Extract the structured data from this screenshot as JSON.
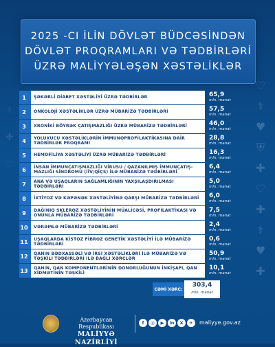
{
  "title": {
    "lines": [
      "2025 -CI İLİN DÖVLƏT BÜDCƏSİNDƏN",
      "DÖVLƏT PROQRAMLARI VƏ TƏDBİRLƏRİ",
      "ÜZRƏ  MALİYYƏLƏŞƏN XƏSTƏLİKLƏR"
    ]
  },
  "chart_data": {
    "type": "table",
    "title": "2025 -CI İLİN DÖVLƏT BÜDCƏSİNDƏN DÖVLƏT PROQRAMLARI VƏ TƏDBİRLƏRİ ÜZRƏ  MALİYYƏLƏŞƏN XƏSTƏLİKLƏR",
    "unit": "mln. manat",
    "rows": [
      {
        "num": "1",
        "label": "ŞƏKƏRLİ DİABET XƏSTƏLİYİ ÜZRƏ TƏDBİRLƏR",
        "value": "65,9"
      },
      {
        "num": "2",
        "label": "ONKOLOJİ XƏSTƏLİKLƏR  ÜZRƏ MÜBARİZƏ TƏDBİRLƏRİ",
        "value": "57,5"
      },
      {
        "num": "3",
        "label": "XRONİKİ BÖYRƏK ÇATIŞMAZLIĞI ÜZRƏ  MÜBARİZƏ TƏDBİRLƏRİ",
        "value": "46,0"
      },
      {
        "num": "4",
        "label": "YOLUXUCU XƏSTƏLİKLƏRİN İMMUNOPROFİLAKTİKASINA DAİR TƏDBİRLƏR PROQRAMI",
        "value": "28,8"
      },
      {
        "num": "5",
        "label": "HEMOFİLİYA XƏSTƏLİYİ ÜZRƏ MÜBARİZƏ TƏDBİRLƏRİ",
        "value": "16,3"
      },
      {
        "num": "6",
        "label": "İNSAN İMMUNÇATIŞMAZLIĞI VİRUSU / QAZANILMIŞ İMMUNÇATIŞ- MAZLIĞI SİNDROMU (İİV/QİÇS) İLƏ MÜBARİZƏ TƏDBİRLƏRİ",
        "value": "6,4"
      },
      {
        "num": "7",
        "label": "ANA VƏ UŞAQLARIN SAĞLAMLIĞININ YAXŞILAŞDIRILMASI TƏDBİRLƏRİ",
        "value": "5,0"
      },
      {
        "num": "8",
        "label": "İXTİYOZ VƏ KƏPƏNƏK XƏSTƏLİYİNƏ QARŞI MÜBARİZƏ TƏDBİRLƏRİ",
        "value": "6,0"
      },
      {
        "num": "9",
        "label": "DAĞINIQ SKLEROZ XƏSTƏLİYİNİN MÜALİCƏSİ, PROFİLAKTİKASI VƏ ONUNLA MÜBARİZƏ TƏDBİRLƏRİ",
        "value": "7,5"
      },
      {
        "num": "10",
        "label": "VƏRƏMLƏ MÜBARİZƏ TƏDBİRLƏRİ",
        "value": "2,4"
      },
      {
        "num": "11",
        "label": "UŞAQLARDA KİSTOZ FİBROZ GENETİK XƏSTƏLİYİ İLƏ MÜBARİZƏ TƏDBİRLƏRİ",
        "value": "0,6"
      },
      {
        "num": "12",
        "label": "QANIN BƏDXASSƏLİ VƏ İRSİ XƏSTƏLİKLƏRİ İLƏ MÜBARİZƏ VƏ TƏŞKİLİ TƏDBİRLƏRİ İLƏ BAĞLI XƏRCLƏR",
        "value": "50,9"
      },
      {
        "num": "13",
        "label": "QANIN, QAN KOMPONENTLƏRİNİN DONORLUĞUNUN İNKİŞAFI, QAN XİDMƏTİNİN TƏŞKİLİ",
        "value": "10,1"
      }
    ],
    "total": {
      "label": "CƏMİ XƏRC:",
      "value": "303,4",
      "unit": "mln. manat"
    }
  },
  "footer": {
    "org_line1": "Azərbaycan Respublikası",
    "org_line2": "MALİYYƏ NAZİRLİYİ",
    "social": [
      "f",
      "◎",
      "▶",
      "in",
      "X",
      "✈"
    ],
    "website": "maliyye.gov.az"
  },
  "colors": {
    "background": "#0b4f8f",
    "accent": "#1e6fc3",
    "label_text": "#1b3f74"
  }
}
